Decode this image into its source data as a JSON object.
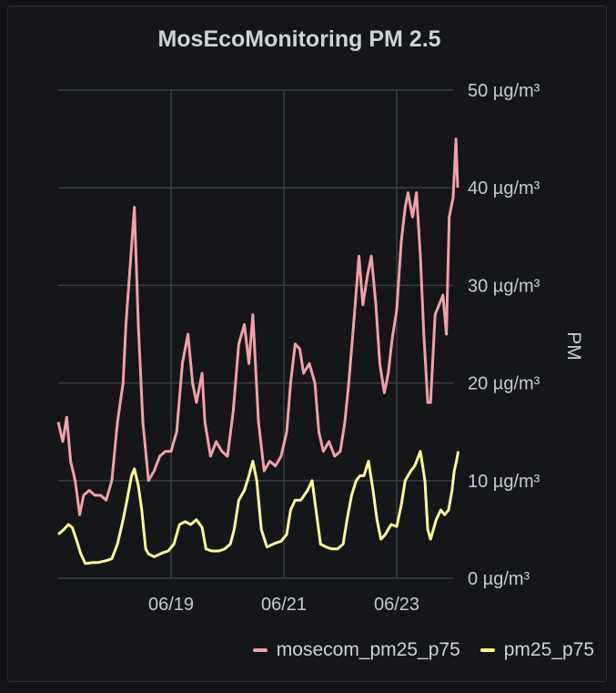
{
  "chart_data": {
    "type": "line",
    "title": "MosEcoMonitoring PM 2.5",
    "ylabel": "PM",
    "ylim": [
      0,
      50
    ],
    "y_ticks": [
      "0 µg/m³",
      "10 µg/m³",
      "20 µg/m³",
      "30 µg/m³",
      "40 µg/m³",
      "50 µg/m³"
    ],
    "x_ticks": [
      "06/19",
      "06/21",
      "06/23"
    ],
    "xlim": [
      0,
      7.0
    ],
    "x_tick_values": [
      2.0,
      4.0,
      6.0
    ],
    "grid": true,
    "legend_position": "bottom-right",
    "series": [
      {
        "name": "mosecom_pm25_p75",
        "color": "#f2a0a9",
        "points": [
          [
            0.0,
            16
          ],
          [
            0.08,
            14
          ],
          [
            0.15,
            16.5
          ],
          [
            0.22,
            12
          ],
          [
            0.3,
            10
          ],
          [
            0.38,
            6.5
          ],
          [
            0.45,
            8.5
          ],
          [
            0.55,
            9
          ],
          [
            0.65,
            8.5
          ],
          [
            0.75,
            8.5
          ],
          [
            0.85,
            8
          ],
          [
            0.95,
            10
          ],
          [
            1.05,
            16
          ],
          [
            1.15,
            20
          ],
          [
            1.2,
            26
          ],
          [
            1.3,
            34
          ],
          [
            1.35,
            38
          ],
          [
            1.42,
            26
          ],
          [
            1.5,
            16
          ],
          [
            1.6,
            10
          ],
          [
            1.7,
            11
          ],
          [
            1.8,
            12.5
          ],
          [
            1.9,
            13
          ],
          [
            2.0,
            13
          ],
          [
            2.1,
            15
          ],
          [
            2.2,
            22
          ],
          [
            2.3,
            25
          ],
          [
            2.38,
            20
          ],
          [
            2.45,
            18
          ],
          [
            2.55,
            21
          ],
          [
            2.6,
            16
          ],
          [
            2.7,
            12.5
          ],
          [
            2.8,
            14
          ],
          [
            2.9,
            13
          ],
          [
            3.0,
            12.5
          ],
          [
            3.1,
            17
          ],
          [
            3.2,
            24
          ],
          [
            3.3,
            26
          ],
          [
            3.38,
            22
          ],
          [
            3.45,
            27
          ],
          [
            3.55,
            16
          ],
          [
            3.65,
            11
          ],
          [
            3.75,
            12
          ],
          [
            3.85,
            11.5
          ],
          [
            3.95,
            12.5
          ],
          [
            4.05,
            15
          ],
          [
            4.12,
            20
          ],
          [
            4.2,
            24
          ],
          [
            4.28,
            23.5
          ],
          [
            4.35,
            21
          ],
          [
            4.45,
            22
          ],
          [
            4.55,
            20
          ],
          [
            4.62,
            15
          ],
          [
            4.7,
            13
          ],
          [
            4.8,
            14
          ],
          [
            4.9,
            12.5
          ],
          [
            5.0,
            13
          ],
          [
            5.08,
            16
          ],
          [
            5.15,
            20
          ],
          [
            5.25,
            27
          ],
          [
            5.33,
            33
          ],
          [
            5.4,
            28
          ],
          [
            5.48,
            31
          ],
          [
            5.55,
            33
          ],
          [
            5.63,
            28
          ],
          [
            5.7,
            22
          ],
          [
            5.78,
            19
          ],
          [
            5.85,
            21
          ],
          [
            5.92,
            24.5
          ],
          [
            6.0,
            27.5
          ],
          [
            6.08,
            34.5
          ],
          [
            6.15,
            38
          ],
          [
            6.2,
            39.5
          ],
          [
            6.28,
            37
          ],
          [
            6.35,
            39.5
          ],
          [
            6.42,
            33
          ],
          [
            6.48,
            25
          ],
          [
            6.55,
            18
          ],
          [
            6.6,
            18
          ],
          [
            6.68,
            27
          ],
          [
            6.75,
            28
          ],
          [
            6.82,
            29
          ],
          [
            6.88,
            25
          ],
          [
            6.93,
            37
          ],
          [
            7.0,
            39
          ],
          [
            7.05,
            45
          ],
          [
            7.08,
            40
          ]
        ]
      },
      {
        "name": "pm25_p75",
        "color": "#fff899",
        "points": [
          [
            0.0,
            4.5
          ],
          [
            0.1,
            5
          ],
          [
            0.18,
            5.5
          ],
          [
            0.25,
            5.2
          ],
          [
            0.32,
            4
          ],
          [
            0.4,
            2.5
          ],
          [
            0.48,
            1.5
          ],
          [
            0.6,
            1.6
          ],
          [
            0.7,
            1.6
          ],
          [
            0.85,
            1.8
          ],
          [
            0.95,
            2
          ],
          [
            1.05,
            3.5
          ],
          [
            1.15,
            6
          ],
          [
            1.22,
            8
          ],
          [
            1.3,
            10.5
          ],
          [
            1.35,
            11.2
          ],
          [
            1.42,
            9.5
          ],
          [
            1.48,
            7
          ],
          [
            1.55,
            3
          ],
          [
            1.6,
            2.5
          ],
          [
            1.7,
            2.2
          ],
          [
            1.85,
            2.6
          ],
          [
            1.95,
            2.8
          ],
          [
            2.05,
            3.5
          ],
          [
            2.15,
            5.5
          ],
          [
            2.25,
            5.8
          ],
          [
            2.35,
            5.5
          ],
          [
            2.45,
            6
          ],
          [
            2.55,
            5.2
          ],
          [
            2.62,
            3
          ],
          [
            2.72,
            2.8
          ],
          [
            2.85,
            2.8
          ],
          [
            2.95,
            3
          ],
          [
            3.05,
            3.5
          ],
          [
            3.12,
            5
          ],
          [
            3.2,
            8
          ],
          [
            3.3,
            9
          ],
          [
            3.38,
            10.5
          ],
          [
            3.45,
            12
          ],
          [
            3.52,
            10
          ],
          [
            3.6,
            5
          ],
          [
            3.7,
            3.2
          ],
          [
            3.85,
            3.6
          ],
          [
            3.95,
            3.8
          ],
          [
            4.05,
            4.5
          ],
          [
            4.12,
            7
          ],
          [
            4.2,
            8
          ],
          [
            4.3,
            8
          ],
          [
            4.42,
            9
          ],
          [
            4.5,
            10
          ],
          [
            4.58,
            6.5
          ],
          [
            4.65,
            3.5
          ],
          [
            4.75,
            3.2
          ],
          [
            4.85,
            3
          ],
          [
            4.95,
            3
          ],
          [
            5.05,
            3.5
          ],
          [
            5.12,
            6
          ],
          [
            5.2,
            8.5
          ],
          [
            5.28,
            10
          ],
          [
            5.35,
            10.5
          ],
          [
            5.42,
            10.5
          ],
          [
            5.5,
            12
          ],
          [
            5.58,
            9
          ],
          [
            5.65,
            6
          ],
          [
            5.72,
            4
          ],
          [
            5.8,
            4.5
          ],
          [
            5.9,
            5.5
          ],
          [
            6.0,
            5.3
          ],
          [
            6.08,
            7.5
          ],
          [
            6.15,
            10
          ],
          [
            6.25,
            11
          ],
          [
            6.32,
            11.5
          ],
          [
            6.42,
            13
          ],
          [
            6.5,
            10
          ],
          [
            6.55,
            5
          ],
          [
            6.6,
            4
          ],
          [
            6.7,
            6
          ],
          [
            6.78,
            7
          ],
          [
            6.85,
            6.5
          ],
          [
            6.92,
            7
          ],
          [
            6.98,
            9
          ],
          [
            7.02,
            11
          ],
          [
            7.06,
            12
          ],
          [
            7.09,
            13
          ]
        ]
      }
    ]
  }
}
